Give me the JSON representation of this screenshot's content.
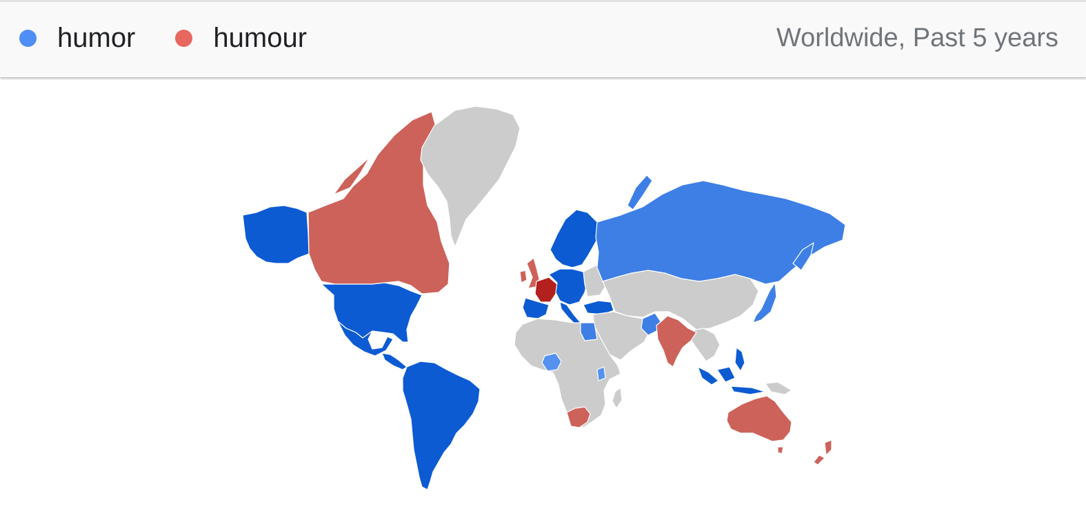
{
  "legend": {
    "items": [
      {
        "label": "humor",
        "color": "#4f8ef5"
      },
      {
        "label": "humour",
        "color": "#e8675e"
      }
    ]
  },
  "scope_label": "Worldwide, Past 5 years",
  "map": {
    "colors": {
      "humor_dark": "#0d5bd3",
      "humor_mid": "#3e7fe6",
      "humor_light": "#5592ef",
      "humour_mid": "#cd625a",
      "humour_dark": "#b3201e",
      "no_data": "#cccccc"
    },
    "regions": [
      {
        "name": "Canada",
        "winner": "humour",
        "shade": "humour_mid"
      },
      {
        "name": "United States",
        "winner": "humor",
        "shade": "humor_dark"
      },
      {
        "name": "Mexico",
        "winner": "humor",
        "shade": "humor_dark"
      },
      {
        "name": "South America",
        "winner": "humor",
        "shade": "humor_dark"
      },
      {
        "name": "Greenland",
        "winner": "none",
        "shade": "no_data"
      },
      {
        "name": "United Kingdom",
        "winner": "humour",
        "shade": "humour_mid"
      },
      {
        "name": "France",
        "winner": "humour",
        "shade": "humour_dark"
      },
      {
        "name": "Spain",
        "winner": "humor",
        "shade": "humor_dark"
      },
      {
        "name": "Scandinavia",
        "winner": "humor",
        "shade": "humor_dark"
      },
      {
        "name": "Russia",
        "winner": "humor",
        "shade": "humor_mid"
      },
      {
        "name": "Egypt",
        "winner": "humor",
        "shade": "humor_mid"
      },
      {
        "name": "Nigeria",
        "winner": "humor",
        "shade": "humor_light"
      },
      {
        "name": "South Africa",
        "winner": "humour",
        "shade": "humour_mid"
      },
      {
        "name": "India",
        "winner": "humour",
        "shade": "humour_mid"
      },
      {
        "name": "Pakistan",
        "winner": "humor",
        "shade": "humor_mid"
      },
      {
        "name": "Indonesia",
        "winner": "humor",
        "shade": "humor_dark"
      },
      {
        "name": "Philippines",
        "winner": "humor",
        "shade": "humor_dark"
      },
      {
        "name": "Japan",
        "winner": "humor",
        "shade": "humor_mid"
      },
      {
        "name": "Australia",
        "winner": "humour",
        "shade": "humour_mid"
      },
      {
        "name": "New Zealand",
        "winner": "humour",
        "shade": "humour_mid"
      }
    ]
  }
}
